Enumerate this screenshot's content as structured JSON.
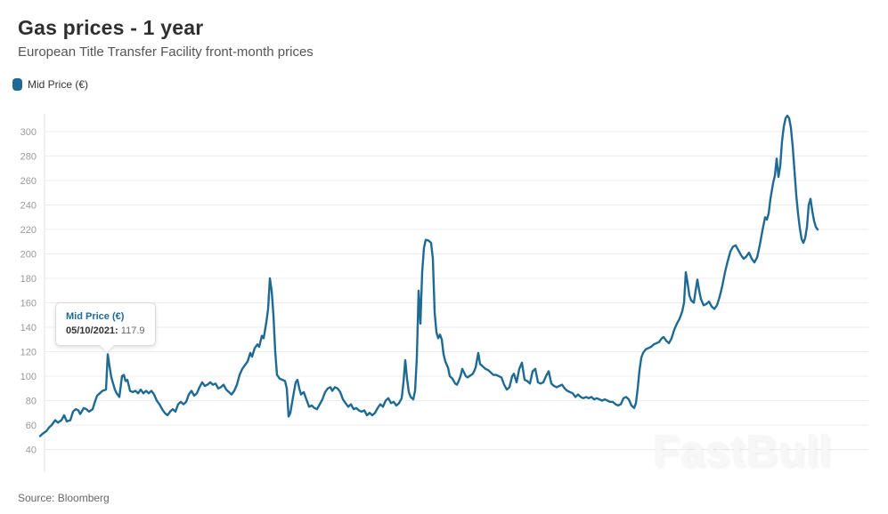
{
  "header": {
    "title": "Gas prices - 1 year",
    "subtitle": "European Title Transfer Facility front-month prices"
  },
  "legend": {
    "label": "Mid Price (€)",
    "marker_color": "#1f6a93"
  },
  "tooltip": {
    "series_label": "Mid Price (€)",
    "date_label": "05/10/2021:",
    "value": "117.9"
  },
  "source": "Source: Bloomberg",
  "watermark": "FastBull",
  "colors": {
    "line": "#1f6a93",
    "grid": "#ececec",
    "axis": "#e0e0e0",
    "tick_label": "#999999",
    "title": "#2f2f2f",
    "subtitle": "#555555",
    "source": "#666666"
  },
  "chart_data": {
    "type": "line",
    "title": "Gas prices - 1 year",
    "subtitle": "European Title Transfer Facility front-month prices",
    "series_name": "Mid Price (€)",
    "unit": "EUR",
    "ylim": [
      40,
      320
    ],
    "yticks": [
      40,
      60,
      80,
      100,
      120,
      140,
      160,
      180,
      200,
      220,
      240,
      260,
      280,
      300
    ],
    "x_tick_labels_visible": false,
    "grid": "horizontal",
    "legend_position": "top-left",
    "highlight_point": {
      "date": "05/10/2021",
      "value": 117.9
    },
    "points_format": [
      "x_px",
      "value_eur"
    ],
    "points": [
      [
        45,
        51
      ],
      [
        48,
        53
      ],
      [
        52,
        55
      ],
      [
        55,
        58
      ],
      [
        58,
        60
      ],
      [
        62,
        64
      ],
      [
        65,
        62
      ],
      [
        69,
        64
      ],
      [
        72,
        68
      ],
      [
        75,
        63
      ],
      [
        79,
        64
      ],
      [
        82,
        71
      ],
      [
        85,
        73
      ],
      [
        88,
        72
      ],
      [
        90,
        69
      ],
      [
        94,
        74
      ],
      [
        97,
        73
      ],
      [
        100,
        71
      ],
      [
        104,
        73
      ],
      [
        107,
        80
      ],
      [
        109,
        84
      ],
      [
        112,
        86
      ],
      [
        115,
        88
      ],
      [
        119,
        89
      ],
      [
        121,
        117.9
      ],
      [
        123,
        108
      ],
      [
        125,
        99
      ],
      [
        127,
        94
      ],
      [
        129,
        89
      ],
      [
        131,
        86
      ],
      [
        134,
        83
      ],
      [
        137,
        100
      ],
      [
        139,
        101
      ],
      [
        141,
        96
      ],
      [
        143,
        97
      ],
      [
        146,
        88
      ],
      [
        149,
        87
      ],
      [
        152,
        88
      ],
      [
        155,
        86
      ],
      [
        158,
        89
      ],
      [
        161,
        86
      ],
      [
        164,
        88
      ],
      [
        167,
        86
      ],
      [
        170,
        88
      ],
      [
        173,
        85
      ],
      [
        176,
        80
      ],
      [
        179,
        77
      ],
      [
        182,
        73
      ],
      [
        185,
        70
      ],
      [
        188,
        68
      ],
      [
        191,
        71
      ],
      [
        194,
        73
      ],
      [
        197,
        71
      ],
      [
        200,
        77
      ],
      [
        203,
        79
      ],
      [
        206,
        77
      ],
      [
        209,
        79
      ],
      [
        212,
        85
      ],
      [
        215,
        88
      ],
      [
        218,
        84
      ],
      [
        221,
        86
      ],
      [
        224,
        91
      ],
      [
        227,
        95
      ],
      [
        230,
        92
      ],
      [
        233,
        93
      ],
      [
        236,
        95
      ],
      [
        239,
        93
      ],
      [
        242,
        94
      ],
      [
        245,
        90
      ],
      [
        248,
        91
      ],
      [
        251,
        93
      ],
      [
        254,
        89
      ],
      [
        257,
        87
      ],
      [
        260,
        85
      ],
      [
        263,
        88
      ],
      [
        266,
        93
      ],
      [
        269,
        101
      ],
      [
        272,
        106
      ],
      [
        275,
        109
      ],
      [
        278,
        112
      ],
      [
        281,
        119
      ],
      [
        283,
        116
      ],
      [
        286,
        123
      ],
      [
        289,
        126
      ],
      [
        291,
        124
      ],
      [
        294,
        133
      ],
      [
        296,
        131
      ],
      [
        299,
        144
      ],
      [
        301,
        155
      ],
      [
        303,
        180
      ],
      [
        305,
        170
      ],
      [
        307,
        150
      ],
      [
        309,
        120
      ],
      [
        311,
        101
      ],
      [
        314,
        98
      ],
      [
        317,
        97
      ],
      [
        320,
        96
      ],
      [
        322,
        90
      ],
      [
        324,
        67
      ],
      [
        326,
        70
      ],
      [
        329,
        83
      ],
      [
        332,
        95
      ],
      [
        334,
        97
      ],
      [
        336,
        90
      ],
      [
        338,
        85
      ],
      [
        341,
        87
      ],
      [
        344,
        81
      ],
      [
        347,
        75
      ],
      [
        350,
        76
      ],
      [
        353,
        74
      ],
      [
        356,
        73
      ],
      [
        359,
        77
      ],
      [
        362,
        81
      ],
      [
        365,
        87
      ],
      [
        368,
        90
      ],
      [
        371,
        91
      ],
      [
        373,
        88
      ],
      [
        376,
        91
      ],
      [
        379,
        90
      ],
      [
        382,
        87
      ],
      [
        385,
        81
      ],
      [
        388,
        78
      ],
      [
        391,
        75
      ],
      [
        394,
        77
      ],
      [
        397,
        73
      ],
      [
        400,
        74
      ],
      [
        403,
        72
      ],
      [
        406,
        71
      ],
      [
        409,
        72
      ],
      [
        412,
        68
      ],
      [
        415,
        70
      ],
      [
        418,
        68
      ],
      [
        421,
        70
      ],
      [
        424,
        74
      ],
      [
        427,
        77
      ],
      [
        430,
        75
      ],
      [
        433,
        80
      ],
      [
        436,
        82
      ],
      [
        439,
        78
      ],
      [
        442,
        79
      ],
      [
        445,
        76
      ],
      [
        448,
        78
      ],
      [
        451,
        82
      ],
      [
        453,
        95
      ],
      [
        455,
        113
      ],
      [
        457,
        98
      ],
      [
        459,
        87
      ],
      [
        461,
        83
      ],
      [
        464,
        81
      ],
      [
        466,
        88
      ],
      [
        468,
        115
      ],
      [
        470,
        170
      ],
      [
        472,
        143
      ],
      [
        474,
        185
      ],
      [
        476,
        205
      ],
      [
        478,
        211.5
      ],
      [
        481,
        211
      ],
      [
        484,
        209
      ],
      [
        486,
        196
      ],
      [
        488,
        152
      ],
      [
        490,
        136
      ],
      [
        492,
        131
      ],
      [
        494,
        134
      ],
      [
        496,
        130
      ],
      [
        498,
        118
      ],
      [
        500,
        112
      ],
      [
        503,
        107
      ],
      [
        505,
        100
      ],
      [
        508,
        98
      ],
      [
        511,
        94
      ],
      [
        513,
        93
      ],
      [
        515,
        96
      ],
      [
        517,
        100
      ],
      [
        519,
        106
      ],
      [
        521,
        103
      ],
      [
        523,
        100
      ],
      [
        525,
        99
      ],
      [
        527,
        100
      ],
      [
        529,
        101
      ],
      [
        531,
        102
      ],
      [
        534,
        107
      ],
      [
        537,
        119
      ],
      [
        539,
        110
      ],
      [
        542,
        108
      ],
      [
        545,
        106
      ],
      [
        548,
        105
      ],
      [
        551,
        103
      ],
      [
        554,
        101
      ],
      [
        557,
        101
      ],
      [
        560,
        100
      ],
      [
        563,
        99
      ],
      [
        566,
        93
      ],
      [
        569,
        89
      ],
      [
        572,
        91
      ],
      [
        575,
        100
      ],
      [
        577,
        102
      ],
      [
        580,
        95
      ],
      [
        583,
        106
      ],
      [
        586,
        111
      ],
      [
        589,
        97
      ],
      [
        592,
        96
      ],
      [
        595,
        94
      ],
      [
        598,
        104
      ],
      [
        601,
        106
      ],
      [
        604,
        95
      ],
      [
        607,
        94
      ],
      [
        610,
        95
      ],
      [
        613,
        100
      ],
      [
        616,
        104
      ],
      [
        619,
        94
      ],
      [
        622,
        92
      ],
      [
        625,
        91
      ],
      [
        628,
        92
      ],
      [
        631,
        93
      ],
      [
        634,
        90
      ],
      [
        637,
        88
      ],
      [
        640,
        87
      ],
      [
        643,
        86
      ],
      [
        646,
        83
      ],
      [
        649,
        85
      ],
      [
        652,
        83
      ],
      [
        655,
        82
      ],
      [
        658,
        83
      ],
      [
        661,
        82
      ],
      [
        664,
        83
      ],
      [
        667,
        81
      ],
      [
        670,
        82
      ],
      [
        673,
        81
      ],
      [
        676,
        80
      ],
      [
        679,
        81
      ],
      [
        682,
        80
      ],
      [
        685,
        79
      ],
      [
        688,
        79
      ],
      [
        691,
        77
      ],
      [
        694,
        76
      ],
      [
        697,
        77
      ],
      [
        700,
        82
      ],
      [
        703,
        83
      ],
      [
        706,
        81
      ],
      [
        709,
        76
      ],
      [
        712,
        74
      ],
      [
        714,
        78
      ],
      [
        716,
        90
      ],
      [
        718,
        105
      ],
      [
        720,
        115
      ],
      [
        722,
        119
      ],
      [
        725,
        122
      ],
      [
        728,
        123
      ],
      [
        731,
        124
      ],
      [
        734,
        126
      ],
      [
        737,
        127
      ],
      [
        740,
        128
      ],
      [
        743,
        131
      ],
      [
        745,
        132
      ],
      [
        748,
        129
      ],
      [
        751,
        127
      ],
      [
        754,
        131
      ],
      [
        757,
        138
      ],
      [
        760,
        143
      ],
      [
        763,
        147
      ],
      [
        766,
        153
      ],
      [
        768,
        160
      ],
      [
        770,
        185
      ],
      [
        772,
        176
      ],
      [
        774,
        166
      ],
      [
        776,
        162
      ],
      [
        779,
        160
      ],
      [
        781,
        170
      ],
      [
        783,
        179
      ],
      [
        785,
        170
      ],
      [
        787,
        163
      ],
      [
        790,
        158
      ],
      [
        793,
        159
      ],
      [
        796,
        161
      ],
      [
        799,
        157
      ],
      [
        802,
        155
      ],
      [
        805,
        158
      ],
      [
        808,
        165
      ],
      [
        811,
        174
      ],
      [
        814,
        185
      ],
      [
        817,
        194
      ],
      [
        820,
        202
      ],
      [
        823,
        206
      ],
      [
        826,
        207
      ],
      [
        829,
        203
      ],
      [
        832,
        199
      ],
      [
        835,
        196
      ],
      [
        838,
        198
      ],
      [
        841,
        201
      ],
      [
        844,
        196
      ],
      [
        847,
        193
      ],
      [
        850,
        197
      ],
      [
        853,
        207
      ],
      [
        856,
        219
      ],
      [
        859,
        230
      ],
      [
        861,
        228
      ],
      [
        863,
        233
      ],
      [
        865,
        245
      ],
      [
        868,
        258
      ],
      [
        870,
        264
      ],
      [
        872,
        278
      ],
      [
        874,
        263
      ],
      [
        876,
        272
      ],
      [
        878,
        292
      ],
      [
        880,
        304
      ],
      [
        882,
        311
      ],
      [
        884,
        313
      ],
      [
        886,
        311
      ],
      [
        888,
        303
      ],
      [
        890,
        288
      ],
      [
        892,
        268
      ],
      [
        894,
        248
      ],
      [
        896,
        233
      ],
      [
        898,
        221
      ],
      [
        900,
        212
      ],
      [
        902,
        209
      ],
      [
        904,
        213
      ],
      [
        906,
        222
      ],
      [
        908,
        240
      ],
      [
        910,
        245
      ],
      [
        912,
        235
      ],
      [
        914,
        227
      ],
      [
        916,
        222
      ],
      [
        918,
        220
      ]
    ]
  }
}
